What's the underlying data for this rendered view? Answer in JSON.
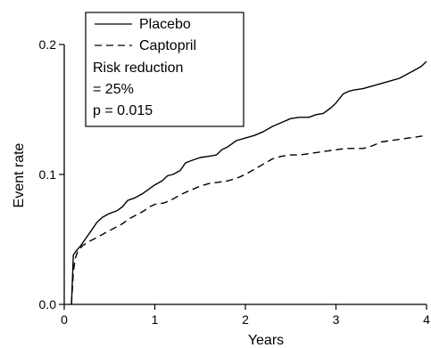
{
  "chart_data": {
    "type": "line",
    "xlabel": "Years",
    "ylabel": "Event rate",
    "xlim": [
      0,
      4
    ],
    "ylim": [
      0,
      0.2
    ],
    "x_ticks": [
      "0",
      "1",
      "2",
      "3",
      "4"
    ],
    "y_ticks": [
      "0.0",
      "0.1",
      "0.2"
    ],
    "grid": false,
    "legend_position": "top-left",
    "series": [
      {
        "name": "Placebo",
        "line_style": "solid",
        "color": "#000000",
        "x": [
          0.08,
          0.1,
          0.13,
          0.18,
          0.24,
          0.3,
          0.36,
          0.42,
          0.5,
          0.58,
          0.64,
          0.7,
          0.78,
          0.86,
          0.94,
          1.0,
          1.08,
          1.14,
          1.2,
          1.28,
          1.34,
          1.42,
          1.5,
          1.6,
          1.68,
          1.74,
          1.8,
          1.9,
          2.0,
          2.1,
          2.2,
          2.3,
          2.4,
          2.5,
          2.6,
          2.7,
          2.78,
          2.86,
          2.94,
          3.0,
          3.08,
          3.14,
          3.2,
          3.3,
          3.4,
          3.5,
          3.6,
          3.7,
          3.78,
          3.86,
          3.94,
          4.0
        ],
        "values": [
          0.0,
          0.038,
          0.041,
          0.045,
          0.051,
          0.057,
          0.063,
          0.067,
          0.07,
          0.072,
          0.075,
          0.08,
          0.082,
          0.085,
          0.089,
          0.092,
          0.095,
          0.099,
          0.1,
          0.103,
          0.109,
          0.111,
          0.113,
          0.114,
          0.115,
          0.119,
          0.121,
          0.126,
          0.128,
          0.13,
          0.133,
          0.137,
          0.14,
          0.143,
          0.144,
          0.144,
          0.146,
          0.147,
          0.151,
          0.155,
          0.162,
          0.164,
          0.165,
          0.166,
          0.168,
          0.17,
          0.172,
          0.174,
          0.177,
          0.18,
          0.183,
          0.187
        ]
      },
      {
        "name": "Captopril",
        "line_style": "dashed",
        "color": "#000000",
        "x": [
          0.08,
          0.1,
          0.12,
          0.15,
          0.2,
          0.26,
          0.32,
          0.4,
          0.48,
          0.56,
          0.64,
          0.72,
          0.8,
          0.88,
          0.94,
          1.0,
          1.1,
          1.2,
          1.3,
          1.4,
          1.5,
          1.6,
          1.7,
          1.8,
          1.9,
          2.0,
          2.1,
          2.2,
          2.3,
          2.4,
          2.5,
          2.6,
          2.7,
          2.8,
          2.9,
          3.0,
          3.1,
          3.2,
          3.3,
          3.4,
          3.5,
          3.6,
          3.7,
          3.8,
          3.9,
          4.0
        ],
        "values": [
          0.0,
          0.025,
          0.035,
          0.041,
          0.045,
          0.048,
          0.05,
          0.053,
          0.056,
          0.059,
          0.062,
          0.066,
          0.069,
          0.072,
          0.075,
          0.077,
          0.078,
          0.081,
          0.085,
          0.088,
          0.091,
          0.093,
          0.094,
          0.095,
          0.097,
          0.1,
          0.104,
          0.108,
          0.112,
          0.114,
          0.115,
          0.115,
          0.116,
          0.117,
          0.118,
          0.119,
          0.12,
          0.12,
          0.12,
          0.122,
          0.125,
          0.126,
          0.127,
          0.128,
          0.129,
          0.13
        ]
      }
    ],
    "annotations": [
      "Risk reduction",
      "= 25%",
      "p = 0.015"
    ]
  }
}
